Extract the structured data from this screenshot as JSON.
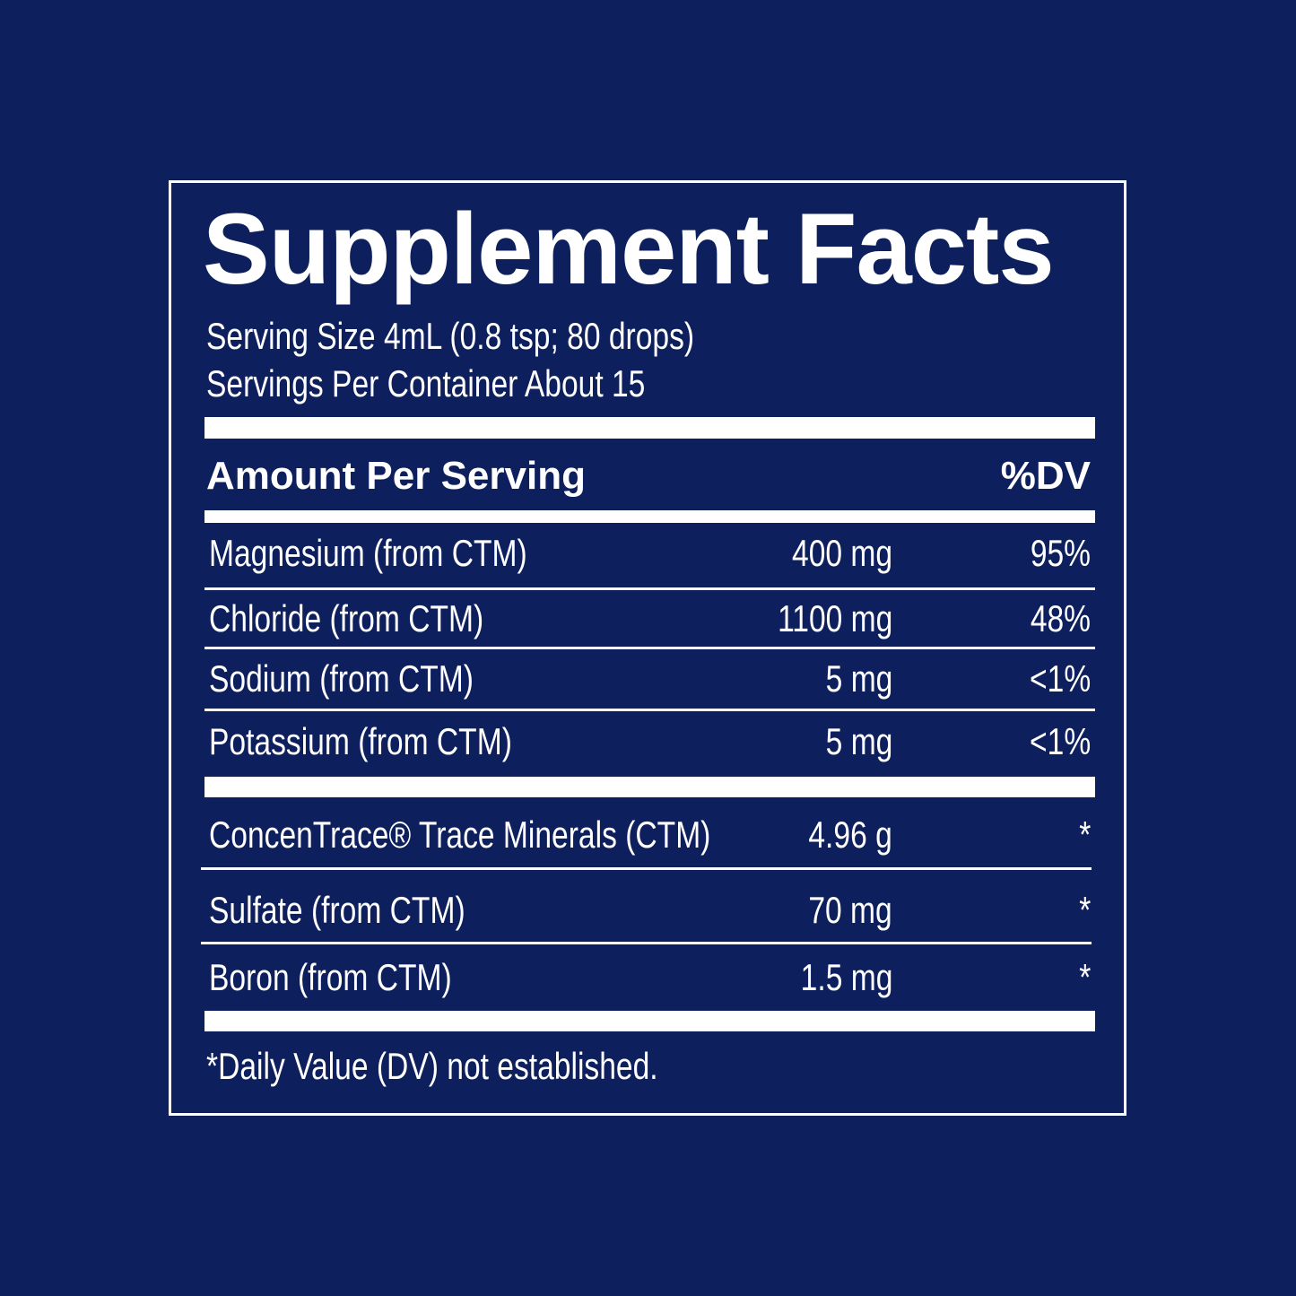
{
  "title": "Supplement Facts",
  "serving_size": "Serving Size 4mL (0.8 tsp; 80 drops)",
  "servings_per_container": "Servings Per Container About 15",
  "header": {
    "amount": "Amount Per Serving",
    "dv": "%DV"
  },
  "rows": [
    [
      "Magnesium (from CTM)",
      "400 mg",
      "95%"
    ],
    [
      "Chloride (from CTM)",
      "1100 mg",
      "48%"
    ],
    [
      "Sodium (from CTM)",
      "5 mg",
      "<1%"
    ],
    [
      "Potassium (from CTM)",
      "5 mg",
      "<1%"
    ],
    [
      "ConcenTrace® Trace Minerals (CTM)",
      "4.96 g",
      "*"
    ],
    [
      "Sulfate (from CTM)",
      "70 mg",
      "*"
    ],
    [
      "Boron (from CTM)",
      "1.5 mg",
      "*"
    ]
  ],
  "footnote": "*Daily Value (DV) not established."
}
